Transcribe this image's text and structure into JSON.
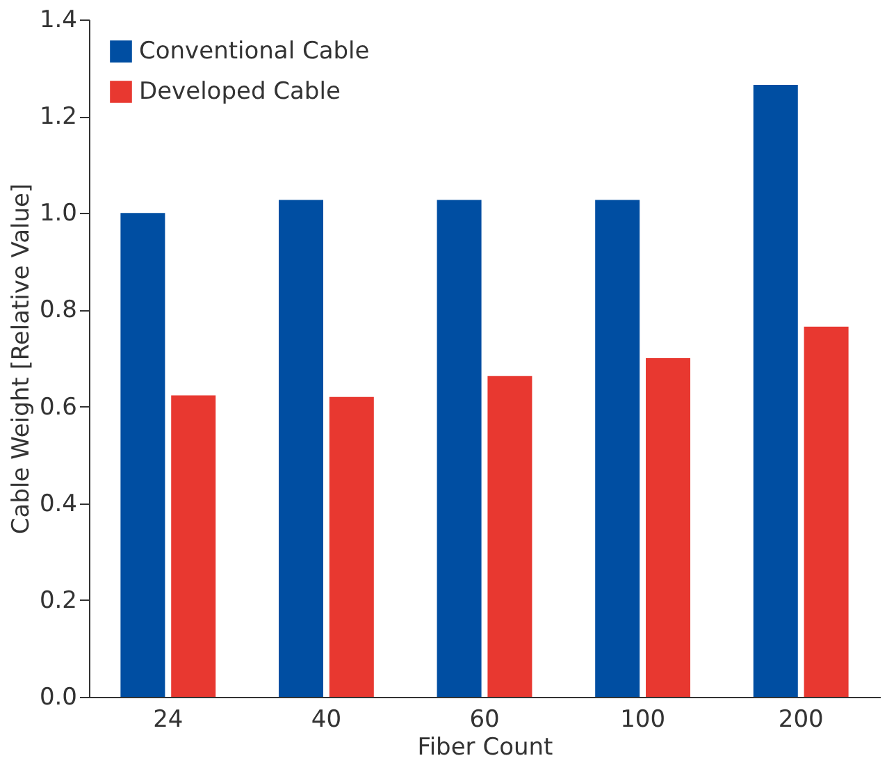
{
  "chart_data": {
    "type": "bar",
    "xlabel": "Fiber Count",
    "ylabel": "Cable Weight  [Relative Value]",
    "categories": [
      "24",
      "40",
      "60",
      "100",
      "200"
    ],
    "series": [
      {
        "name": "Conventional Cable",
        "color": "#004ea2",
        "values": [
          1.0,
          1.027,
          1.027,
          1.027,
          1.265
        ]
      },
      {
        "name": "Developed Cable",
        "color": "#e83830",
        "values": [
          0.623,
          0.62,
          0.663,
          0.7,
          0.765
        ]
      }
    ],
    "ylim": [
      0,
      1.4
    ],
    "yticks": [
      {
        "value": 0,
        "label": "0.0"
      },
      0.2,
      0.4,
      0.6,
      0.8,
      {
        "value": 1,
        "label": "1.0"
      },
      1.2,
      1.4
    ],
    "grid": false,
    "legend": "top left"
  }
}
